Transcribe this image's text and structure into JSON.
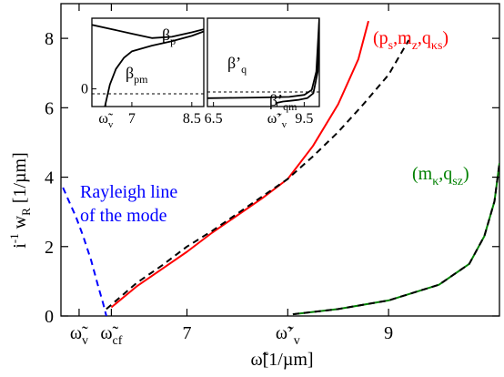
{
  "chart_data": [
    {
      "type": "line",
      "ylabel": "i⁻¹ w_R [1/µm]",
      "xlabel": "ω̃[1/µm]",
      "xlim": [
        5.75,
        10.1
      ],
      "ylim": [
        0,
        9.0
      ],
      "xticks": [
        {
          "value": 5.93,
          "label": "ω̃",
          "sub": "v"
        },
        {
          "value": 6.25,
          "label": "ω̃",
          "sub": "cf"
        },
        {
          "value": 7,
          "label": "7"
        },
        {
          "value": 8.0,
          "label": "ω̃’",
          "sub": "v"
        },
        {
          "value": 9,
          "label": "9"
        }
      ],
      "yticks": [
        0,
        2,
        4,
        6,
        8
      ],
      "series_labels": [
        {
          "text": "(p",
          "sub": "s",
          "text2": ",m",
          "sub2": "z",
          "text3": ",q",
          "sub3": "κs",
          "text4": ")",
          "color": "#ff0000"
        },
        {
          "text": "(m",
          "sub": "κ",
          "text2": ",q",
          "sub2": "sz",
          "text4": ")",
          "color": "#008000"
        }
      ],
      "annotation": {
        "line1": "Rayleigh line",
        "line2": "of the mode",
        "color": "#0000ff"
      },
      "series": [
        {
          "color": "#ff0000",
          "style": "solid",
          "x": [
            6.25,
            6.5,
            6.75,
            7.0,
            7.25,
            7.5,
            7.75,
            8.0,
            8.25,
            8.5,
            8.7,
            8.8
          ],
          "y": [
            0.25,
            0.85,
            1.35,
            1.85,
            2.4,
            2.9,
            3.4,
            3.95,
            4.9,
            6.1,
            7.4,
            8.5
          ]
        },
        {
          "color": "#000000",
          "style": "dashed",
          "x": [
            6.2,
            6.5,
            6.75,
            7.0,
            7.25,
            7.5,
            7.75,
            8.0,
            8.25,
            8.5,
            8.75,
            9.0,
            9.2
          ],
          "y": [
            0.2,
            0.95,
            1.45,
            2.0,
            2.45,
            2.95,
            3.45,
            3.95,
            4.6,
            5.3,
            6.1,
            6.95,
            7.95
          ]
        },
        {
          "color": "#008000",
          "style": "solid",
          "x": [
            8.05,
            8.5,
            9.0,
            9.5,
            9.8,
            9.95,
            10.05,
            10.1
          ],
          "y": [
            0.05,
            0.2,
            0.45,
            0.9,
            1.5,
            2.3,
            3.3,
            4.4
          ]
        },
        {
          "color": "#000000",
          "style": "dashed",
          "x": [
            8.05,
            8.5,
            9.0,
            9.5,
            9.8,
            9.95,
            10.05,
            10.1
          ],
          "y": [
            0.05,
            0.2,
            0.45,
            0.9,
            1.5,
            2.3,
            3.3,
            4.4
          ]
        },
        {
          "color": "#0000ff",
          "style": "dashed",
          "x": [
            5.77,
            5.83,
            5.9,
            5.97,
            6.05,
            6.12,
            6.17,
            6.2
          ],
          "y": [
            3.7,
            3.3,
            2.85,
            2.3,
            1.6,
            0.85,
            0.35,
            0.0
          ]
        }
      ]
    },
    {
      "type": "line",
      "xticks": [
        {
          "value": 6.35,
          "label": "ω̃",
          "sub": "v"
        },
        {
          "value": 7,
          "label": "7"
        },
        {
          "value": 8.5,
          "label": "8.5"
        }
      ],
      "yticks": [
        {
          "value": 0,
          "label": "0"
        }
      ],
      "curve_labels": [
        {
          "text": "β",
          "sub": "p"
        },
        {
          "text": "β",
          "sub": "pm"
        }
      ],
      "series": [
        {
          "name": "β_p",
          "x": [
            6.0,
            6.5,
            7.0,
            7.5,
            8.0,
            8.5,
            8.8
          ],
          "y": [
            1.45,
            1.35,
            1.25,
            1.15,
            1.18,
            1.28,
            1.35
          ]
        },
        {
          "name": "β_pm",
          "x": [
            6.3,
            6.45,
            6.6,
            6.8,
            7.0,
            7.5,
            8.0,
            8.5,
            8.8
          ],
          "y": [
            -0.5,
            0.1,
            0.45,
            0.7,
            0.85,
            0.98,
            1.08,
            1.2,
            1.3
          ]
        }
      ]
    },
    {
      "type": "line",
      "xticks": [
        {
          "value": 6.5,
          "label": "6.5"
        },
        {
          "value": 8.6,
          "label": "ω̃’",
          "sub": "v"
        },
        {
          "value": 9.5,
          "label": "9.5"
        }
      ],
      "curve_labels": [
        {
          "text": "β’",
          "sub": "q"
        },
        {
          "text": "β’",
          "sub": "qm"
        }
      ],
      "series": [
        {
          "name": "β’_q",
          "x": [
            6.3,
            7.0,
            8.0,
            9.0,
            9.5,
            9.75,
            9.9,
            10.0
          ],
          "y": [
            0.1,
            0.11,
            0.12,
            0.14,
            0.2,
            0.35,
            0.9,
            2.5
          ]
        },
        {
          "name": "β’_qm",
          "x": [
            8.55,
            8.8,
            9.0,
            9.3,
            9.6,
            9.8,
            9.95,
            10.0
          ],
          "y": [
            -0.05,
            0.0,
            0.02,
            0.05,
            0.1,
            0.25,
            0.9,
            2.5
          ]
        }
      ]
    }
  ]
}
